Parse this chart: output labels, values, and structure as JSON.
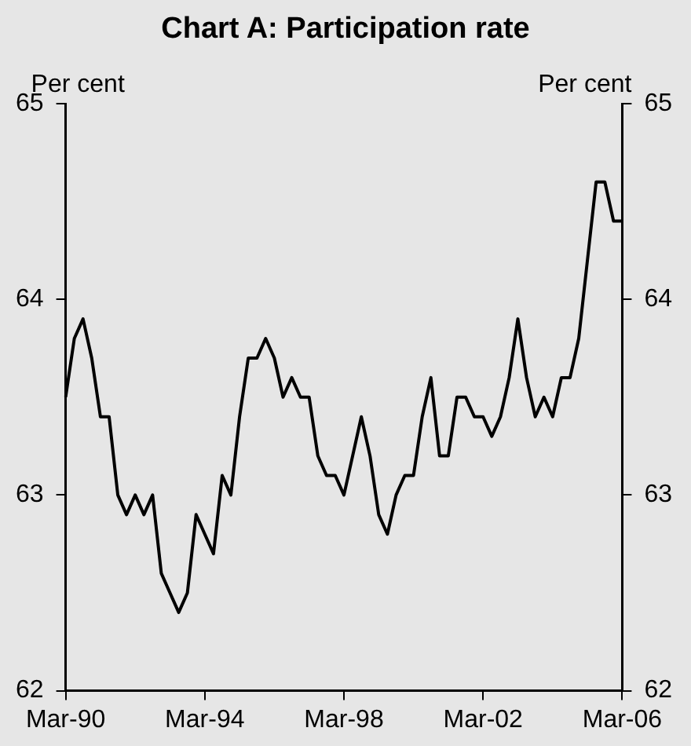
{
  "chart_data": {
    "type": "line",
    "title": "Chart A: Participation rate",
    "ylabel": "Per cent",
    "y2label": "Per cent",
    "categories": [
      "Mar-90",
      null,
      null,
      null,
      null,
      null,
      null,
      null,
      null,
      null,
      null,
      null,
      null,
      null,
      null,
      null,
      "Mar-94",
      null,
      null,
      null,
      null,
      null,
      null,
      null,
      null,
      null,
      null,
      null,
      null,
      null,
      null,
      null,
      "Mar-98",
      null,
      null,
      null,
      null,
      null,
      null,
      null,
      null,
      null,
      null,
      null,
      null,
      null,
      null,
      null,
      "Mar-02",
      null,
      null,
      null,
      null,
      null,
      null,
      null,
      null,
      null,
      null,
      null,
      null,
      null,
      null,
      null,
      "Mar-06"
    ],
    "series": [
      {
        "color": "#000000",
        "values": [
          63.5,
          63.8,
          63.9,
          63.7,
          63.4,
          63.4,
          63.0,
          62.9,
          63.0,
          62.9,
          63.0,
          62.6,
          62.5,
          62.4,
          62.5,
          62.9,
          62.8,
          62.7,
          63.1,
          63.0,
          63.4,
          63.7,
          63.7,
          63.8,
          63.7,
          63.5,
          63.6,
          63.5,
          63.5,
          63.2,
          63.1,
          63.1,
          63.0,
          63.2,
          63.4,
          63.2,
          62.9,
          62.8,
          63.0,
          63.1,
          63.1,
          63.4,
          63.6,
          63.2,
          63.2,
          63.5,
          63.5,
          63.4,
          63.4,
          63.3,
          63.4,
          63.6,
          63.9,
          63.6,
          63.4,
          63.5,
          63.4,
          63.6,
          63.6,
          63.8,
          64.2,
          64.6,
          64.6,
          64.4,
          64.4
        ]
      }
    ],
    "ylim": [
      62,
      65
    ],
    "yticks": [
      62,
      63,
      64,
      65
    ],
    "y2lim": [
      62,
      65
    ],
    "y2ticks": [
      62,
      63,
      64,
      65
    ],
    "grid": false,
    "legend": false,
    "marker": "none",
    "line_style": "solid"
  }
}
